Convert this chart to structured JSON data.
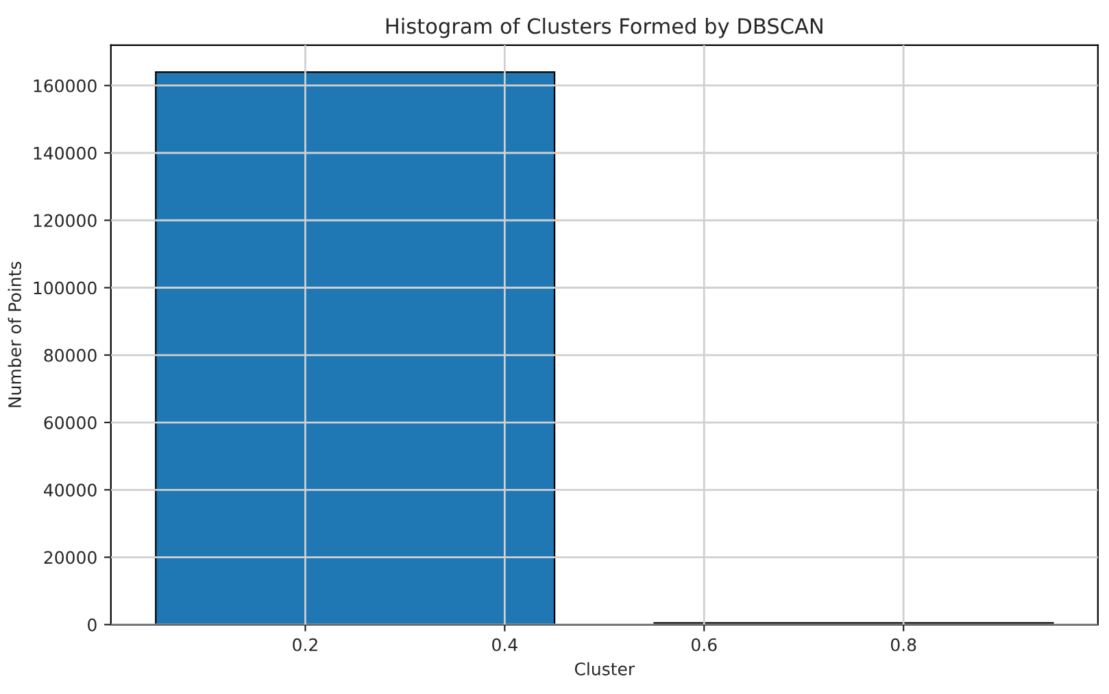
{
  "chart_data": {
    "type": "histogram",
    "title": "Histogram of Clusters Formed by DBSCAN",
    "xlabel": "Cluster",
    "ylabel": "Number of Points",
    "bins": [
      0,
      0.5,
      1
    ],
    "values": [
      164000,
      500
    ],
    "color": "#1f77b4",
    "xlim": [
      0.005,
      0.995
    ],
    "xticks": [
      0.2,
      0.4,
      0.6,
      0.8
    ],
    "ylim": [
      0,
      172000
    ],
    "yticks": [
      0,
      20000,
      40000,
      60000,
      80000,
      100000,
      120000,
      140000,
      160000
    ],
    "grid": true
  }
}
